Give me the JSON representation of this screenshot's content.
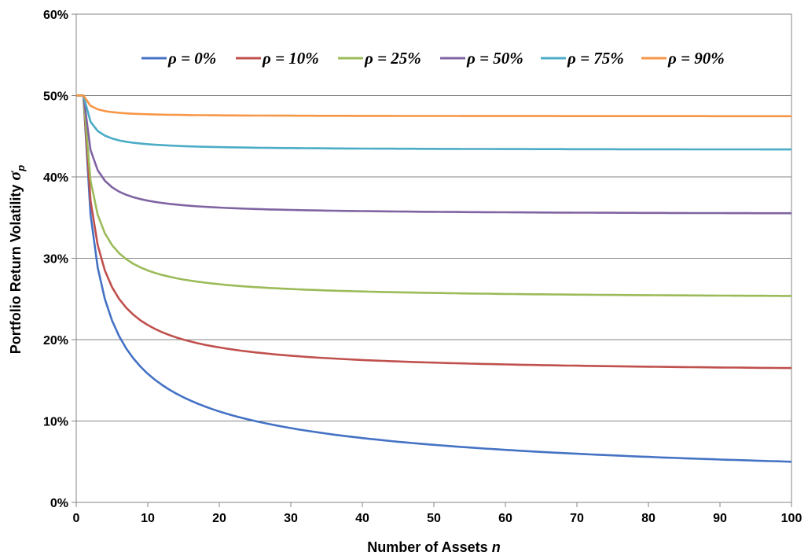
{
  "chart_data": {
    "type": "line",
    "title": "",
    "xlabel": "Number of Assets",
    "xlabel_var": "n",
    "ylabel": "Portfolio Return Volatility",
    "ylabel_var": "σ",
    "ylabel_sub": "p",
    "xlim": [
      0,
      100
    ],
    "ylim": [
      0,
      0.6
    ],
    "x_ticks": [
      0,
      10,
      20,
      30,
      40,
      50,
      60,
      70,
      80,
      90,
      100
    ],
    "x_tick_labels": [
      "0",
      "10",
      "20",
      "30",
      "40",
      "50",
      "60",
      "70",
      "80",
      "90",
      "100"
    ],
    "y_ticks": [
      0,
      0.1,
      0.2,
      0.3,
      0.4,
      0.5,
      0.6
    ],
    "y_tick_labels": [
      "0%",
      "10%",
      "20%",
      "30%",
      "40%",
      "50%",
      "60%"
    ],
    "grid": true,
    "legend_position": "top",
    "line_start_x": 1,
    "asset_volatility": 0.5,
    "series": [
      {
        "name": "ρ = 0%",
        "rho": 0.0,
        "color": "#4472C4"
      },
      {
        "name": "ρ = 10%",
        "rho": 0.1,
        "color": "#C0504D"
      },
      {
        "name": "ρ = 25%",
        "rho": 0.25,
        "color": "#9BBB59"
      },
      {
        "name": "ρ = 50%",
        "rho": 0.5,
        "color": "#8064A2"
      },
      {
        "name": "ρ = 75%",
        "rho": 0.75,
        "color": "#4BACC6"
      },
      {
        "name": "ρ = 90%",
        "rho": 0.9,
        "color": "#F79646"
      }
    ]
  }
}
